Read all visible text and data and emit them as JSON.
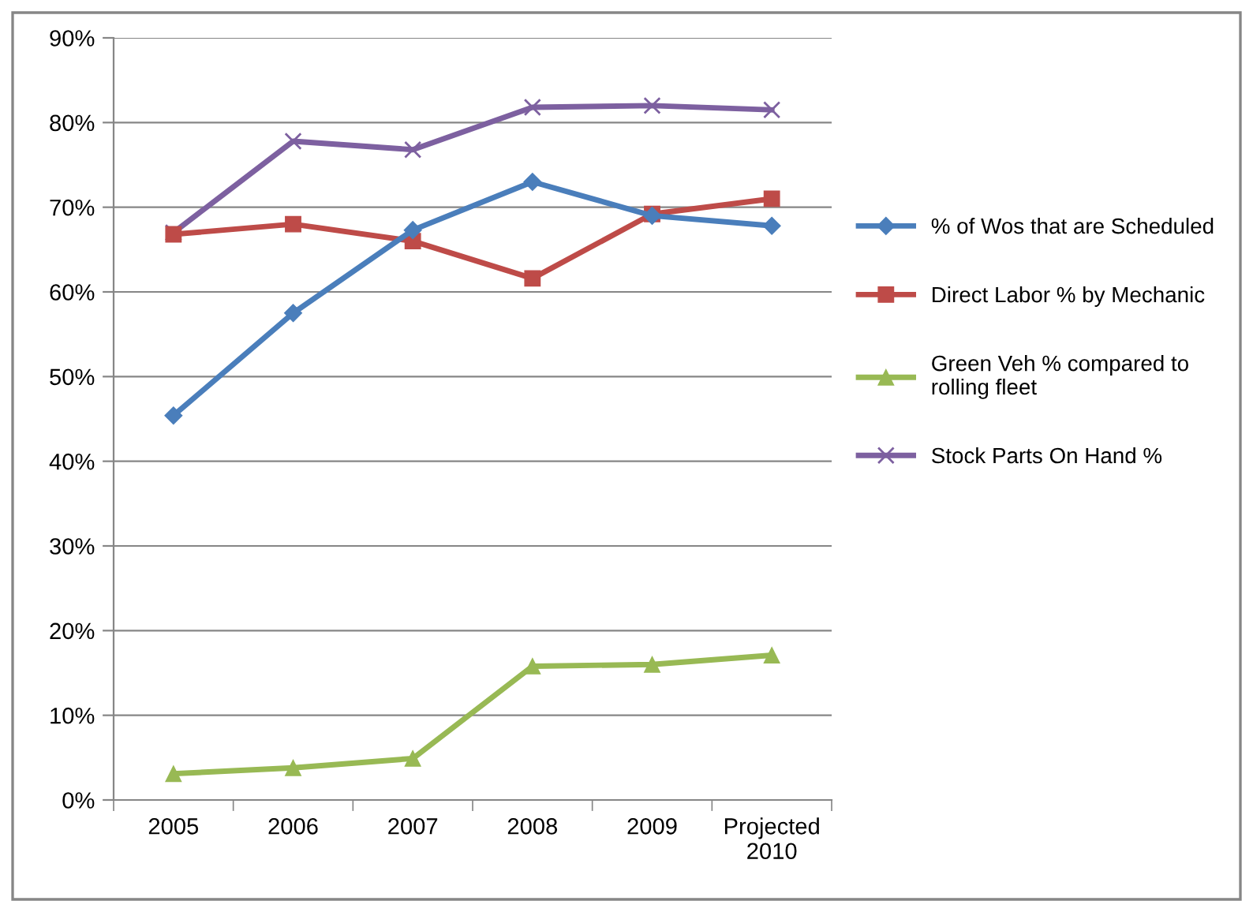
{
  "chart_data": {
    "type": "line",
    "categories": [
      "2005",
      "2006",
      "2007",
      "2008",
      "2009",
      "Projected\n2010"
    ],
    "series": [
      {
        "name": "% of Wos that are Scheduled",
        "color": "#4a7ebb",
        "marker": "diamond",
        "values": [
          45.4,
          57.5,
          67.3,
          73.0,
          69.0,
          67.8
        ]
      },
      {
        "name": "Direct Labor % by Mechanic",
        "color": "#be4b48",
        "marker": "square",
        "values": [
          66.8,
          68.0,
          66.0,
          61.6,
          69.2,
          71.0
        ]
      },
      {
        "name": "Green Veh % compared to\nrolling fleet",
        "color": "#98b954",
        "marker": "triangle",
        "values": [
          3.1,
          3.8,
          4.9,
          15.8,
          16.0,
          17.1
        ]
      },
      {
        "name": "Stock Parts On Hand %",
        "color": "#7d60a0",
        "marker": "cross",
        "values": [
          67.0,
          77.8,
          76.8,
          81.8,
          82.0,
          81.5
        ]
      }
    ],
    "ylim": [
      0,
      90
    ],
    "yticks": [
      {
        "value": 0,
        "label": "0%"
      },
      {
        "value": 10,
        "label": "10%"
      },
      {
        "value": 20,
        "label": "20%"
      },
      {
        "value": 30,
        "label": "30%"
      },
      {
        "value": 40,
        "label": "40%"
      },
      {
        "value": 50,
        "label": "50%"
      },
      {
        "value": 60,
        "label": "60%"
      },
      {
        "value": 70,
        "label": "70%"
      },
      {
        "value": 80,
        "label": "80%"
      },
      {
        "value": 90,
        "label": "90%"
      }
    ],
    "grid": "y",
    "legend": "right"
  }
}
